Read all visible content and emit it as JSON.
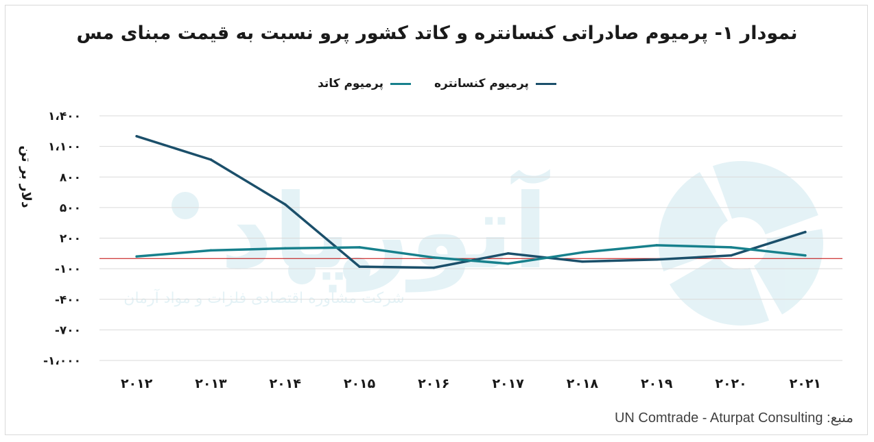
{
  "chart_data": {
    "type": "line",
    "title": "نمودار ۱- پرمیوم صادراتی کنسانتره و کاتد کشور پرو نسبت به قیمت مبنای مس",
    "ylabel": "دلار بر تن",
    "xlabel": "",
    "ylim": [
      -1000,
      1400
    ],
    "yticks": [
      1400,
      1100,
      800,
      500,
      200,
      -100,
      -400,
      -700,
      -1000
    ],
    "ytick_labels": [
      "۱،۴۰۰",
      "۱،۱۰۰",
      "۸۰۰",
      "۵۰۰",
      "۲۰۰",
      "-۱۰۰",
      "-۴۰۰",
      "-۷۰۰",
      "-۱،۰۰۰"
    ],
    "categories": [
      2012,
      2013,
      2014,
      2015,
      2016,
      2017,
      2018,
      2019,
      2020,
      2021
    ],
    "category_labels": [
      "۲۰۱۲",
      "۲۰۱۳",
      "۲۰۱۴",
      "۲۰۱۵",
      "۲۰۱۶",
      "۲۰۱۷",
      "۲۰۱۸",
      "۲۰۱۹",
      "۲۰۲۰",
      "۲۰۲۱"
    ],
    "reference_line": 0,
    "grid": true,
    "legend_position": "top",
    "series": [
      {
        "name": "پرمیوم کنسانتره",
        "color": "#1b4f6a",
        "values": [
          1200,
          970,
          530,
          -80,
          -90,
          50,
          -30,
          -10,
          30,
          260
        ]
      },
      {
        "name": "پرمیوم کاتد",
        "color": "#17808c",
        "values": [
          20,
          80,
          100,
          110,
          10,
          -50,
          60,
          130,
          110,
          30
        ]
      }
    ]
  },
  "source": {
    "label": "منبع:",
    "text": "UN Comtrade - Aturpat Consulting"
  },
  "watermark": {
    "brand": "آتورپاد",
    "tagline": "شرکت مشاوره اقتصادی فلزات و مواد آرمان",
    "color": "#9fd3e0"
  }
}
